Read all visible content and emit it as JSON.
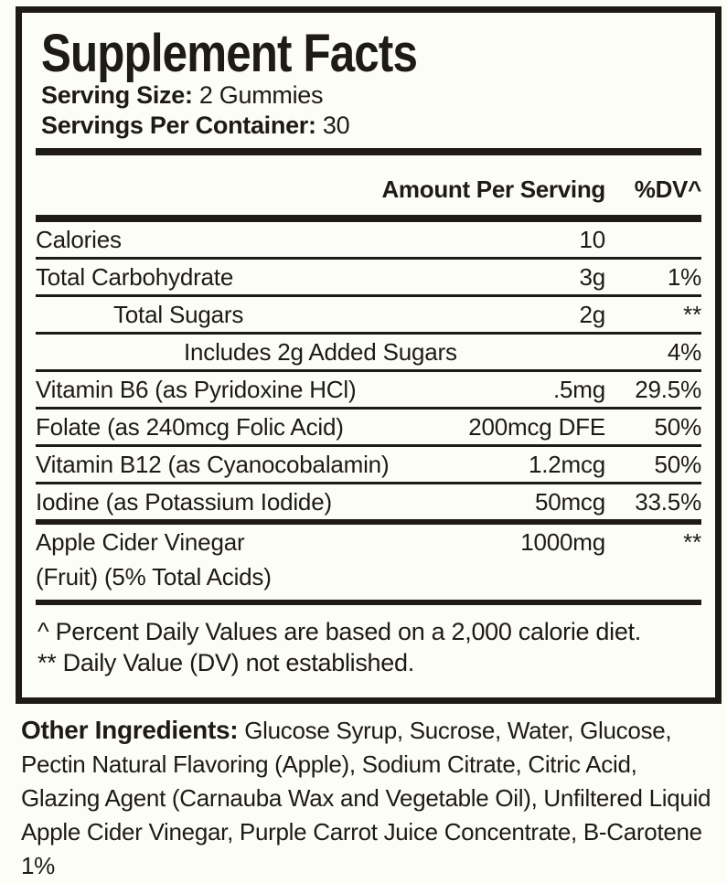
{
  "panel": {
    "title": "Supplement Facts",
    "serving_size_label": "Serving Size:",
    "serving_size_value": "2 Gummies",
    "servings_per_container_label": "Servings Per Container:",
    "servings_per_container_value": "30",
    "header": {
      "amount": "Amount Per Serving",
      "dv": "%DV^"
    },
    "rows": [
      {
        "name": "Calories",
        "amount": "10",
        "dv": ""
      },
      {
        "name": "Total Carbohydrate",
        "amount": "3g",
        "dv": "1%"
      },
      {
        "name": "Total Sugars",
        "amount": "2g",
        "dv": "**"
      },
      {
        "name": "Includes 2g Added Sugars",
        "amount": "",
        "dv": "4%"
      },
      {
        "name": "Vitamin B6 (as Pyridoxine HCl)",
        "amount": ".5mg",
        "dv": "29.5%"
      },
      {
        "name": "Folate (as 240mcg Folic Acid)",
        "amount": "200mcg DFE",
        "dv": "50%"
      },
      {
        "name": "Vitamin B12 (as Cyanocobalamin)",
        "amount": "1.2mcg",
        "dv": "50%"
      },
      {
        "name": "Iodine (as Potassium Iodide)",
        "amount": "50mcg",
        "dv": "33.5%"
      },
      {
        "name": "Apple Cider Vinegar",
        "name_line2": "(Fruit) (5% Total Acids)",
        "amount": "1000mg",
        "dv": "**"
      }
    ],
    "footnotes": [
      "^ Percent Daily Values are based on a 2,000 calorie diet.",
      "** Daily Value (DV) not established."
    ]
  },
  "other_ingredients": {
    "label": "Other Ingredients:",
    "text": "Glucose Syrup, Sucrose, Water, Glucose, Pectin Natural Flavoring (Apple), Sodium Citrate, Citric Acid, Glazing Agent (Carnauba Wax and Vegetable Oil), Unfiltered Liquid Apple Cider Vinegar, Purple Carrot Juice Concentrate, B-Carotene 1%"
  },
  "colors": {
    "background": "#fdfdf7",
    "ink": "#1e1a15"
  }
}
